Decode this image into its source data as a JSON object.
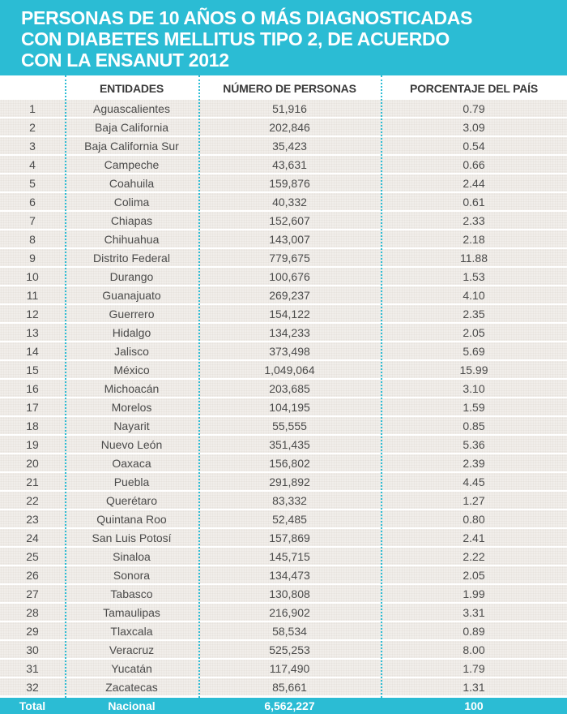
{
  "title": {
    "lines": [
      "PERSONAS DE 10 AÑOS O MÁS DIAGNOSTICADAS",
      "CON DIABETES MELLITUS TIPO 2, DE ACUERDO",
      "CON LA ENSANUT  2012"
    ]
  },
  "colors": {
    "accent": "#2bbcd4",
    "row_bg": "#f1eeea",
    "text": "#4a4a4a",
    "header_text": "#3a3a3a"
  },
  "table": {
    "headers": [
      "",
      "ENTIDADES",
      "NÚMERO DE PERSONAS",
      "PORCENTAJE DEL PAÍS"
    ],
    "rows": [
      [
        "1",
        "Aguascalientes",
        "51,916",
        "0.79"
      ],
      [
        "2",
        "Baja California",
        "202,846",
        "3.09"
      ],
      [
        "3",
        "Baja California Sur",
        "35,423",
        "0.54"
      ],
      [
        "4",
        "Campeche",
        "43,631",
        "0.66"
      ],
      [
        "5",
        "Coahuila",
        "159,876",
        "2.44"
      ],
      [
        "6",
        "Colima",
        "40,332",
        "0.61"
      ],
      [
        "7",
        "Chiapas",
        "152,607",
        "2.33"
      ],
      [
        "8",
        "Chihuahua",
        "143,007",
        "2.18"
      ],
      [
        "9",
        "Distrito Federal",
        "779,675",
        "11.88"
      ],
      [
        "10",
        "Durango",
        "100,676",
        "1.53"
      ],
      [
        "11",
        "Guanajuato",
        "269,237",
        "4.10"
      ],
      [
        "12",
        "Guerrero",
        "154,122",
        "2.35"
      ],
      [
        "13",
        "Hidalgo",
        "134,233",
        "2.05"
      ],
      [
        "14",
        "Jalisco",
        "373,498",
        "5.69"
      ],
      [
        "15",
        "México",
        "1,049,064",
        "15.99"
      ],
      [
        "16",
        "Michoacán",
        "203,685",
        "3.10"
      ],
      [
        "17",
        "Morelos",
        "104,195",
        "1.59"
      ],
      [
        "18",
        "Nayarit",
        "55,555",
        "0.85"
      ],
      [
        "19",
        "Nuevo León",
        "351,435",
        "5.36"
      ],
      [
        "20",
        "Oaxaca",
        "156,802",
        "2.39"
      ],
      [
        "21",
        "Puebla",
        "291,892",
        "4.45"
      ],
      [
        "22",
        "Querétaro",
        "83,332",
        "1.27"
      ],
      [
        "23",
        "Quintana Roo",
        "52,485",
        "0.80"
      ],
      [
        "24",
        "San Luis Potosí",
        "157,869",
        "2.41"
      ],
      [
        "25",
        "Sinaloa",
        "145,715",
        "2.22"
      ],
      [
        "26",
        "Sonora",
        "134,473",
        "2.05"
      ],
      [
        "27",
        "Tabasco",
        "130,808",
        "1.99"
      ],
      [
        "28",
        "Tamaulipas",
        "216,902",
        "3.31"
      ],
      [
        "29",
        "Tlaxcala",
        "58,534",
        "0.89"
      ],
      [
        "30",
        "Veracruz",
        "525,253",
        "8.00"
      ],
      [
        "31",
        "Yucatán",
        "117,490",
        "1.79"
      ],
      [
        "32",
        "Zacatecas",
        "85,661",
        "1.31"
      ]
    ],
    "total": [
      "Total",
      "Nacional",
      "6,562,227",
      "100"
    ]
  }
}
